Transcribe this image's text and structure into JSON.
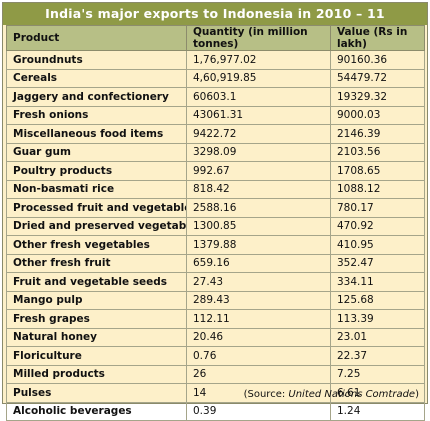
{
  "title": "India's major exports to Indonesia in 2010 – 11",
  "columns": [
    "Product",
    "Quantity (in million tonnes)",
    "Value (Rs in lakh)"
  ],
  "rows": [
    {
      "product": "Groundnuts",
      "quantity": "1,76,977.02",
      "value": "90160.36"
    },
    {
      "product": "Cereals",
      "quantity": "4,60,919.85",
      "value": "54479.72"
    },
    {
      "product": "Jaggery and confectionery",
      "quantity": "60603.1",
      "value": "19329.32"
    },
    {
      "product": "Fresh onions",
      "quantity": "43061.31",
      "value": "9000.03"
    },
    {
      "product": "Miscellaneous food items",
      "quantity": "9422.72",
      "value": "2146.39"
    },
    {
      "product": "Guar gum",
      "quantity": "3298.09",
      "value": "2103.56"
    },
    {
      "product": "Poultry products",
      "quantity": "992.67",
      "value": "1708.65"
    },
    {
      "product": "Non-basmati rice",
      "quantity": "818.42",
      "value": "1088.12"
    },
    {
      "product": "Processed fruit and vegetables",
      "quantity": "2588.16",
      "value": "780.17"
    },
    {
      "product": "Dried and preserved vegetables",
      "quantity": "1300.85",
      "value": "470.92"
    },
    {
      "product": "Other fresh vegetables",
      "quantity": "1379.88",
      "value": "410.95"
    },
    {
      "product": "Other fresh fruit",
      "quantity": "659.16",
      "value": "352.47"
    },
    {
      "product": "Fruit and vegetable seeds",
      "quantity": "27.43",
      "value": "334.11"
    },
    {
      "product": "Mango pulp",
      "quantity": "289.43",
      "value": "125.68"
    },
    {
      "product": "Fresh grapes",
      "quantity": "112.11",
      "value": "113.39"
    },
    {
      "product": "Natural honey",
      "quantity": "20.46",
      "value": "23.01"
    },
    {
      "product": "Floriculture",
      "quantity": "0.76",
      "value": "22.37"
    },
    {
      "product": "Milled products",
      "quantity": "26",
      "value": "7.25"
    },
    {
      "product": "Pulses",
      "quantity": "14",
      "value": "6.61"
    },
    {
      "product": "Alcoholic beverages",
      "quantity": "0.39",
      "value": "1.24"
    }
  ],
  "source": {
    "prefix": "(Source: ",
    "name": "United Nations Comtrade",
    "suffix": ")"
  },
  "colors": {
    "title_bg": "#8f9a46",
    "header_bg": "#b7bf86",
    "panel_bg": "#fdf0c9"
  }
}
